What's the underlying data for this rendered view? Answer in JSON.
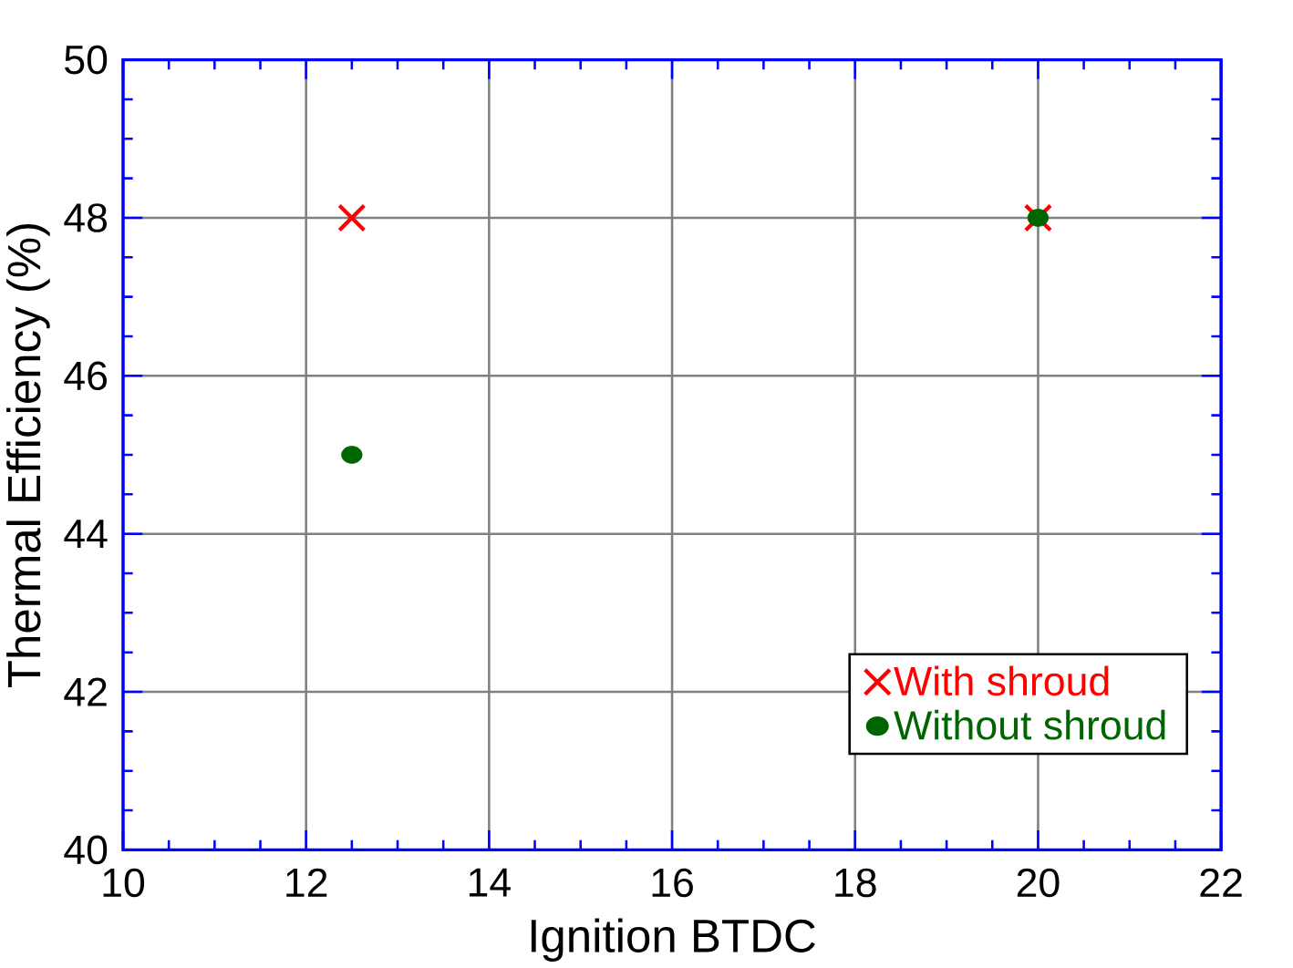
{
  "chart_data": {
    "type": "scatter",
    "xlabel": "Ignition  BTDC",
    "ylabel": "Thermal   Efficiency  (%)",
    "xlim": [
      10,
      22
    ],
    "xticks": [
      10,
      12,
      14,
      16,
      18,
      20,
      22
    ],
    "ylim": [
      40,
      50
    ],
    "yticks": [
      40,
      42,
      44,
      46,
      48,
      50
    ],
    "grid": true,
    "legend": "bottom right",
    "x": [
      12.5,
      20
    ],
    "series": [
      {
        "name": "With  shroud",
        "color": "#ff0000",
        "marker": "cross",
        "values": [
          48,
          48
        ]
      },
      {
        "name": "Without  shroud",
        "color": "#006400",
        "marker": "circle",
        "values": [
          45,
          48
        ]
      }
    ]
  }
}
